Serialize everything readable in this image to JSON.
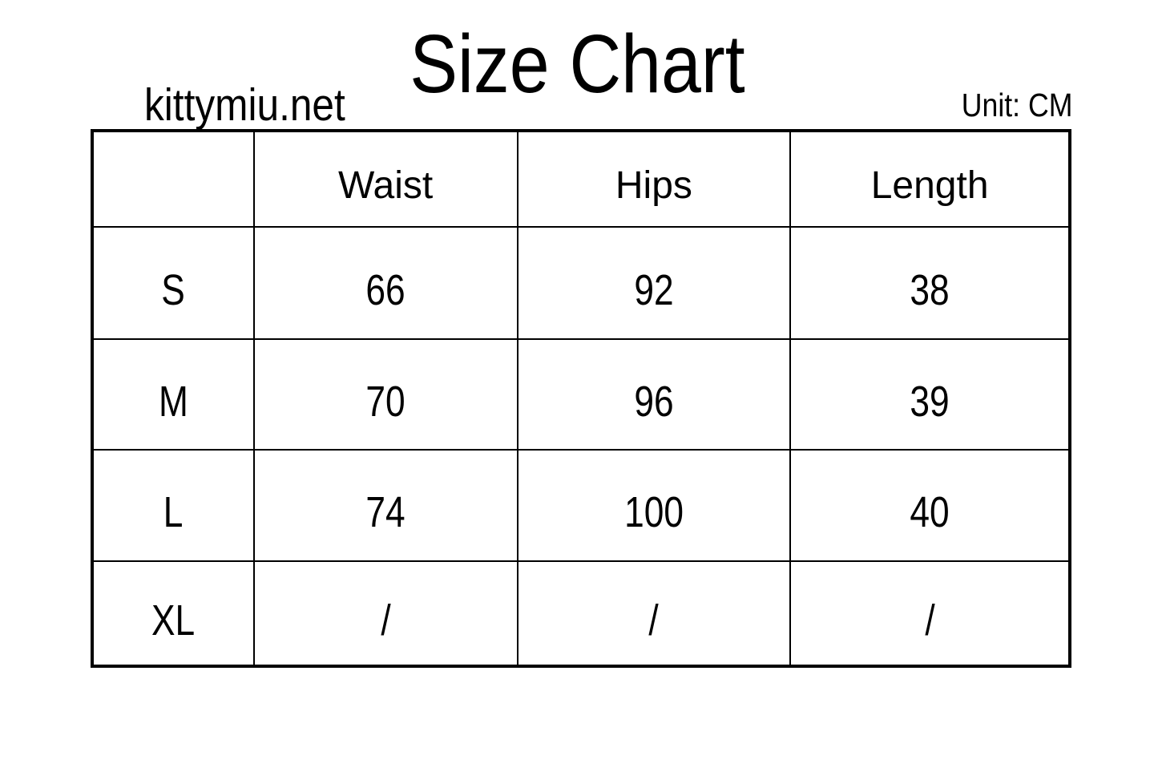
{
  "header": {
    "watermark": "kittymiu.net",
    "unit_label": "Unit: CM"
  },
  "colors": {
    "text": "#000000",
    "background": "#ffffff",
    "border": "#000000"
  },
  "chart_data": {
    "type": "table",
    "title": "Size Chart",
    "unit": "CM",
    "columns": [
      "",
      "Waist",
      "Hips",
      "Length"
    ],
    "row_labels": [
      "S",
      "M",
      "L",
      "XL"
    ],
    "rows": [
      [
        "S",
        "66",
        "92",
        "38"
      ],
      [
        "M",
        "70",
        "96",
        "39"
      ],
      [
        "L",
        "74",
        "100",
        "40"
      ],
      [
        "XL",
        "/",
        "/",
        "/"
      ]
    ]
  }
}
